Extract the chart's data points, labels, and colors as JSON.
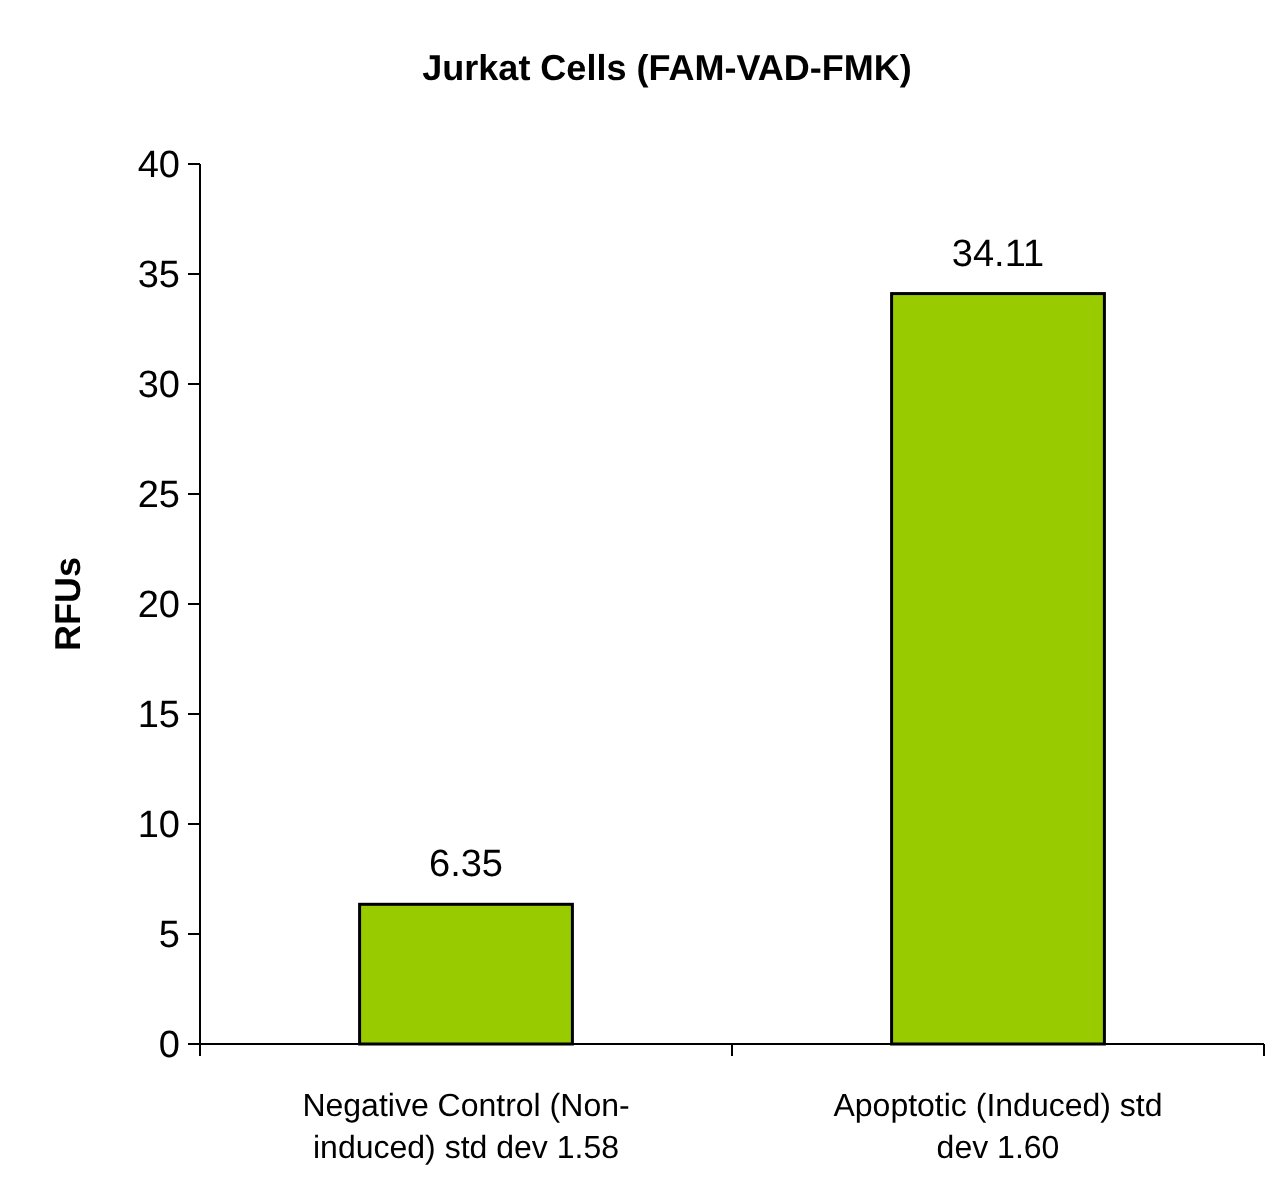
{
  "chart_data": {
    "type": "bar",
    "title": "Jurkat Cells (FAM-VAD-FMK)",
    "ylabel": "RFUs",
    "categories": [
      "Negative Control (Non-induced) std dev 1.58",
      "Apoptotic (Induced) std dev 1.60"
    ],
    "values": [
      6.35,
      34.11
    ],
    "color": "#99cc00",
    "data_labels": true,
    "ylim": [
      0,
      40
    ],
    "yticks": [
      0,
      5,
      10,
      15,
      20,
      25,
      30,
      35,
      40
    ],
    "grid": false
  }
}
